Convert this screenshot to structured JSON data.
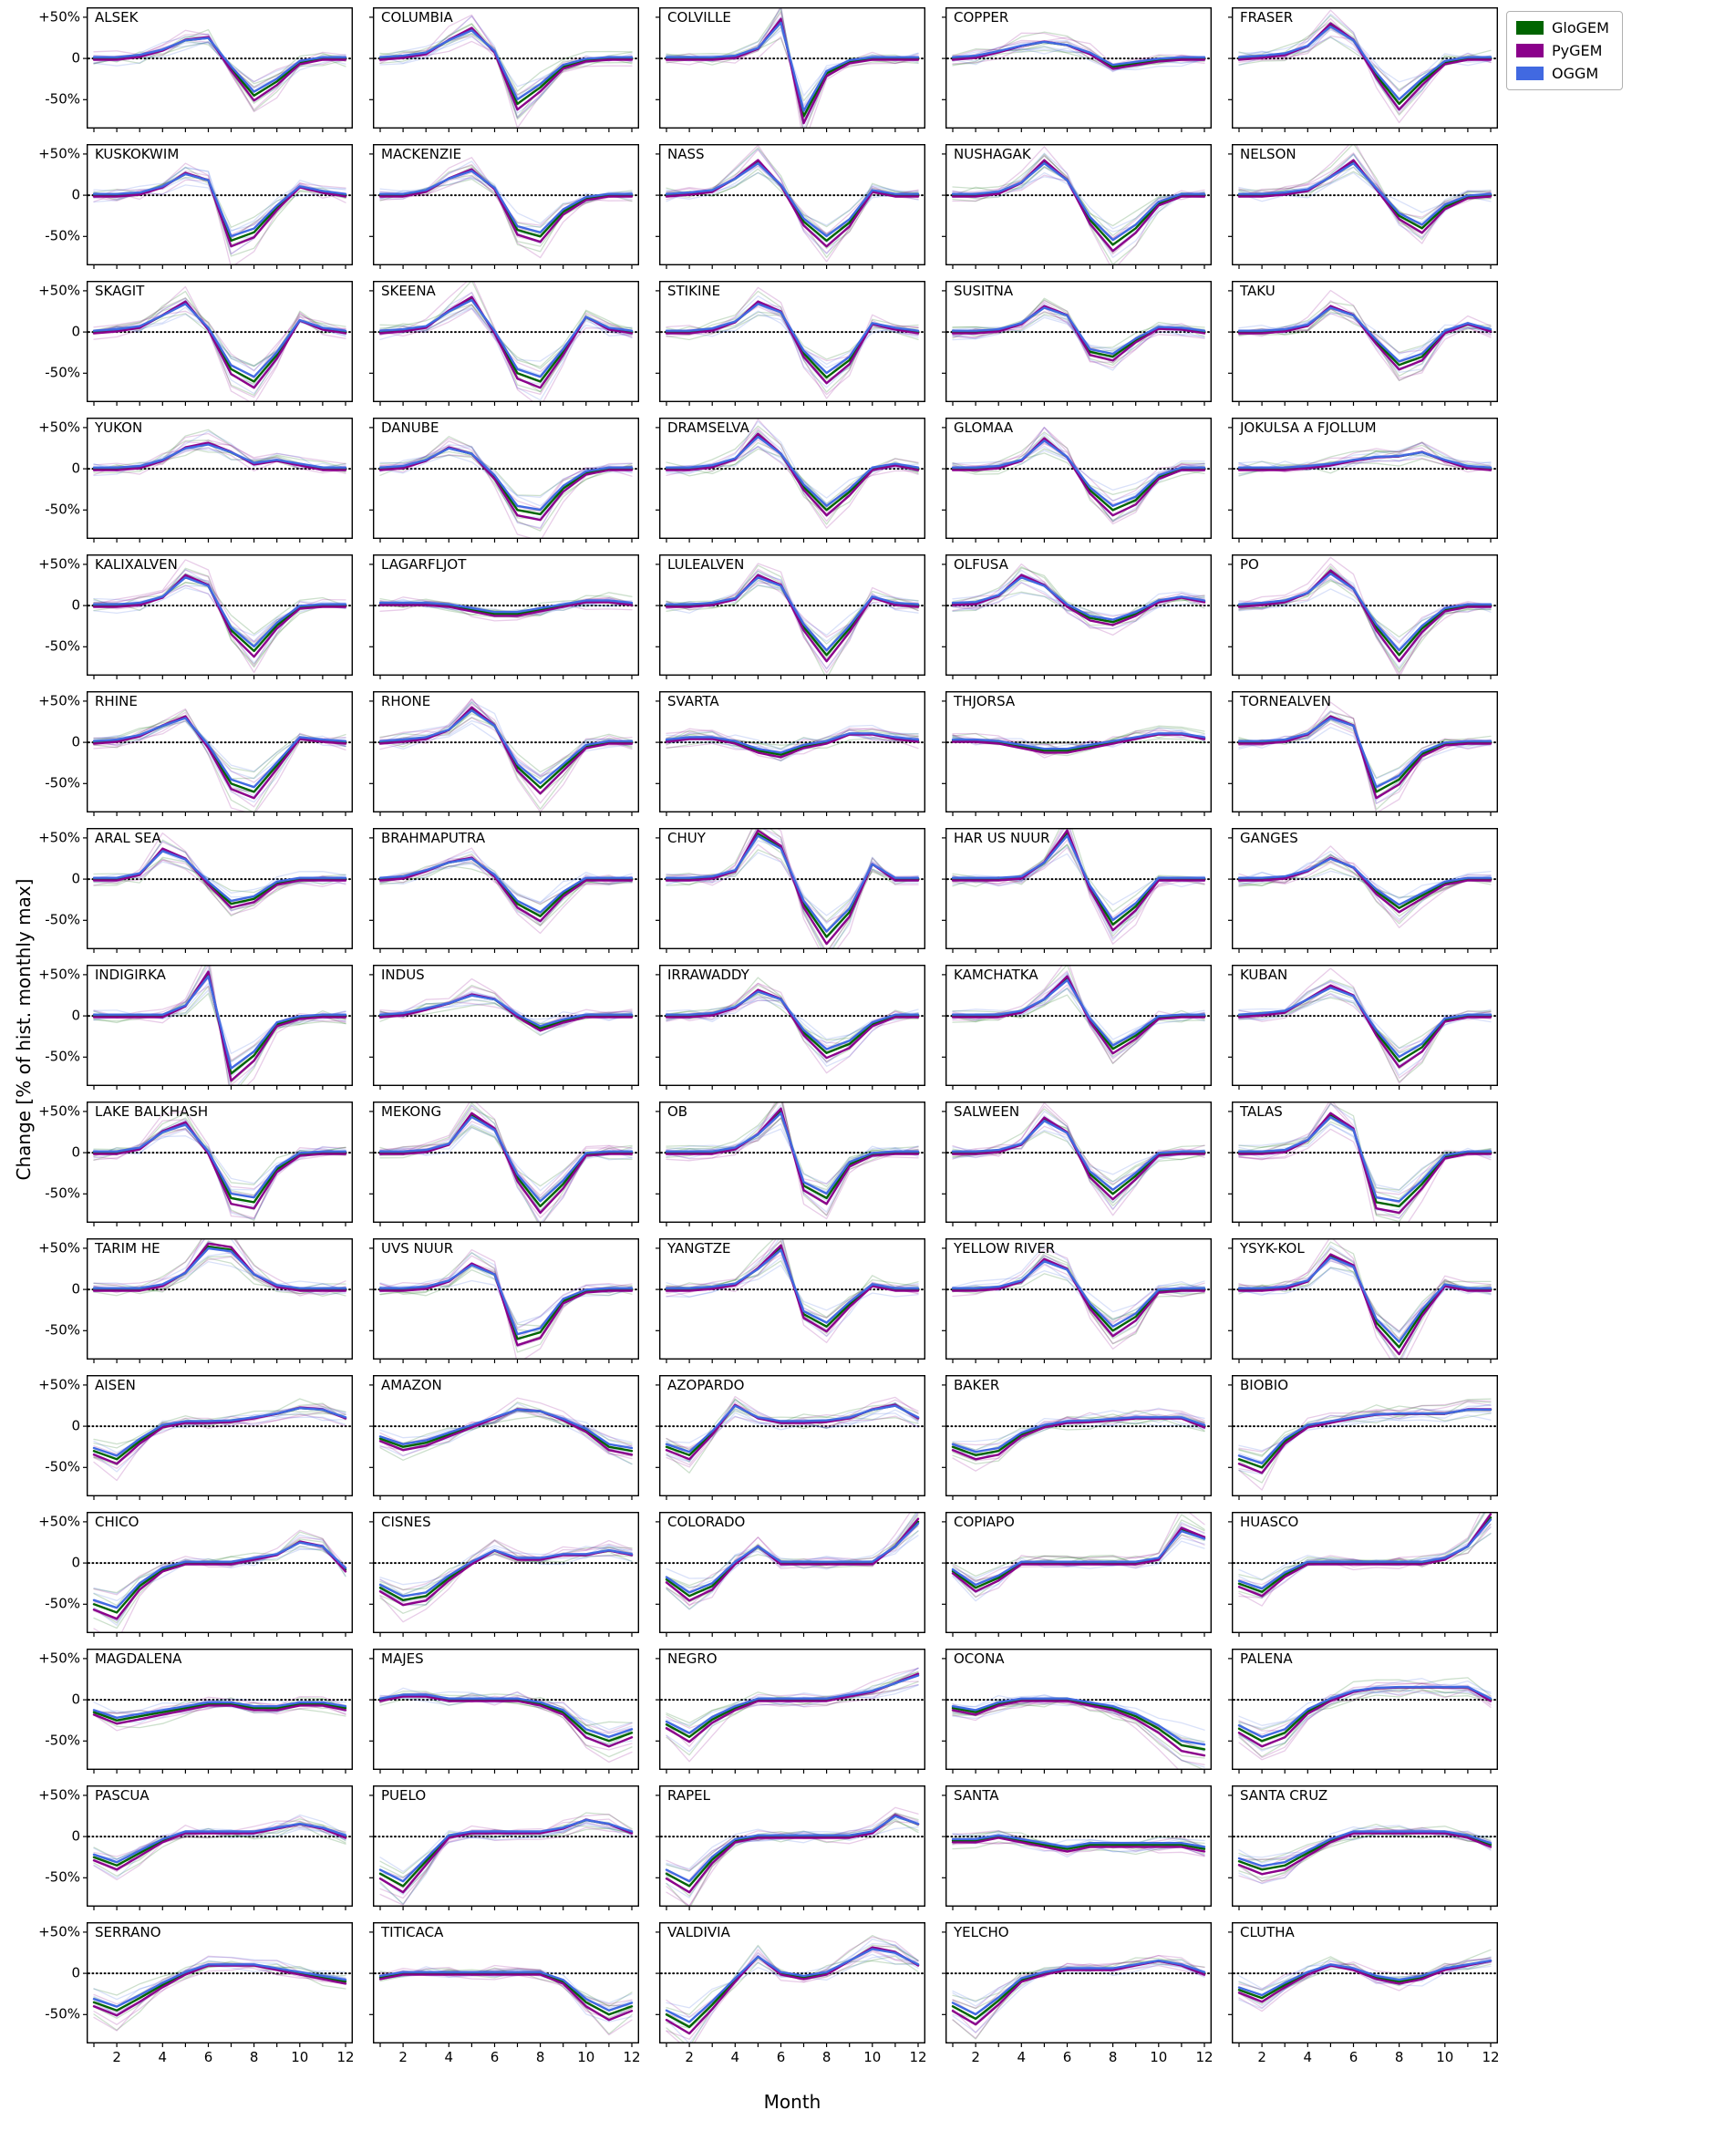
{
  "figure": {
    "ylabel": "Change [% of hist. monthly max]",
    "xlabel": "Month",
    "yticks": [
      50,
      0,
      -50
    ],
    "ytick_labels": [
      "+50%",
      "0",
      "-50%"
    ],
    "xticks": [
      2,
      4,
      6,
      8,
      10,
      12
    ]
  },
  "legend": {
    "entries": [
      {
        "label": "GloGEM",
        "color": "#006400"
      },
      {
        "label": "PyGEM",
        "color": "#8B008B"
      },
      {
        "label": "OGGM",
        "color": "#4169E1"
      }
    ]
  },
  "render": {
    "ylim": [
      -85,
      62
    ],
    "model_scales": [
      1.0,
      1.1,
      0.93
    ],
    "model_offsets": [
      0,
      -1.5,
      1.5
    ],
    "ensemble_scales": [
      1.35,
      0.7,
      1.15,
      0.85
    ],
    "ensemble_jitter": 6,
    "ensemble_alpha": 0.2,
    "mean_width": 2.4,
    "ensemble_width": 1.3
  },
  "chart_data": {
    "type": "line",
    "title": "Monthly runoff change per basin, three glacier models with ensemble spread",
    "x": [
      1,
      2,
      3,
      4,
      5,
      6,
      7,
      8,
      9,
      10,
      11,
      12
    ],
    "xlabel": "Month",
    "ylabel": "Change [% of hist. monthly max]",
    "ylim": [
      -85,
      62
    ],
    "grid": {
      "rows": 15,
      "cols": 5
    },
    "series_names": [
      "GloGEM",
      "PyGEM",
      "OGGM"
    ],
    "panels": [
      {
        "name": "ALSEK",
        "values": [
          0,
          0,
          3,
          10,
          22,
          25,
          -12,
          -45,
          -28,
          -5,
          0,
          0
        ]
      },
      {
        "name": "COLUMBIA",
        "values": [
          0,
          2,
          6,
          22,
          35,
          8,
          -55,
          -35,
          -10,
          -2,
          0,
          0
        ]
      },
      {
        "name": "COLVILLE",
        "values": [
          0,
          0,
          0,
          2,
          12,
          45,
          -70,
          -18,
          -4,
          0,
          0,
          0
        ]
      },
      {
        "name": "COPPER",
        "values": [
          0,
          2,
          8,
          15,
          20,
          16,
          6,
          -10,
          -6,
          -2,
          0,
          0
        ]
      },
      {
        "name": "FRASER",
        "values": [
          0,
          2,
          5,
          15,
          40,
          22,
          -20,
          -55,
          -28,
          -5,
          0,
          0
        ]
      },
      {
        "name": "KUSKOKWIM",
        "values": [
          0,
          0,
          2,
          10,
          26,
          18,
          -55,
          -45,
          -15,
          10,
          4,
          0
        ]
      },
      {
        "name": "MACKENZIE",
        "values": [
          0,
          0,
          5,
          20,
          30,
          8,
          -42,
          -50,
          -20,
          -4,
          0,
          0
        ]
      },
      {
        "name": "NASS",
        "values": [
          0,
          2,
          5,
          20,
          40,
          12,
          -32,
          -55,
          -33,
          5,
          0,
          0
        ]
      },
      {
        "name": "NUSHAGAK",
        "values": [
          0,
          0,
          3,
          15,
          40,
          18,
          -30,
          -60,
          -40,
          -10,
          0,
          0
        ]
      },
      {
        "name": "NELSON",
        "values": [
          0,
          0,
          2,
          6,
          22,
          40,
          8,
          -25,
          -40,
          -14,
          -2,
          0
        ]
      },
      {
        "name": "SKAGIT",
        "values": [
          0,
          2,
          6,
          20,
          35,
          4,
          -45,
          -60,
          -28,
          14,
          4,
          0
        ]
      },
      {
        "name": "SKEENA",
        "values": [
          0,
          2,
          6,
          25,
          40,
          0,
          -50,
          -60,
          -24,
          18,
          4,
          0
        ]
      },
      {
        "name": "STIKINE",
        "values": [
          0,
          0,
          3,
          12,
          35,
          24,
          -26,
          -55,
          -34,
          10,
          4,
          0
        ]
      },
      {
        "name": "SUSITNA",
        "values": [
          0,
          0,
          2,
          10,
          30,
          20,
          -24,
          -30,
          -10,
          5,
          4,
          0
        ]
      },
      {
        "name": "TAKU",
        "values": [
          0,
          0,
          2,
          8,
          30,
          20,
          -12,
          -40,
          -30,
          0,
          10,
          2
        ]
      },
      {
        "name": "YUKON",
        "values": [
          0,
          0,
          2,
          10,
          25,
          30,
          20,
          6,
          10,
          5,
          0,
          0
        ]
      },
      {
        "name": "DANUBE",
        "values": [
          0,
          2,
          10,
          25,
          18,
          -10,
          -50,
          -55,
          -24,
          -5,
          0,
          0
        ]
      },
      {
        "name": "DRAMSELVA",
        "values": [
          0,
          0,
          3,
          12,
          40,
          18,
          -22,
          -50,
          -28,
          0,
          5,
          0
        ]
      },
      {
        "name": "GLOMAA",
        "values": [
          0,
          0,
          2,
          10,
          35,
          14,
          -26,
          -50,
          -38,
          -10,
          0,
          0
        ]
      },
      {
        "name": "JOKULSA A FJOLLUM",
        "values": [
          0,
          0,
          0,
          2,
          5,
          10,
          14,
          15,
          20,
          10,
          2,
          0
        ]
      },
      {
        "name": "KALIXALVEN",
        "values": [
          0,
          0,
          2,
          10,
          35,
          24,
          -30,
          -55,
          -24,
          -2,
          0,
          0
        ]
      },
      {
        "name": "LAGARFLJOT",
        "values": [
          2,
          2,
          2,
          0,
          -5,
          -10,
          -10,
          -5,
          0,
          5,
          5,
          2
        ]
      },
      {
        "name": "LULEALVEN",
        "values": [
          0,
          0,
          2,
          8,
          35,
          24,
          -26,
          -60,
          -28,
          10,
          2,
          0
        ]
      },
      {
        "name": "OLFUSA",
        "values": [
          2,
          3,
          12,
          35,
          24,
          0,
          -15,
          -20,
          -10,
          5,
          10,
          5
        ]
      },
      {
        "name": "PO",
        "values": [
          0,
          2,
          5,
          15,
          40,
          20,
          -26,
          -60,
          -28,
          -5,
          0,
          0
        ]
      },
      {
        "name": "RHINE",
        "values": [
          0,
          2,
          8,
          20,
          30,
          -5,
          -50,
          -60,
          -28,
          5,
          2,
          0
        ]
      },
      {
        "name": "RHONE",
        "values": [
          0,
          2,
          5,
          15,
          40,
          20,
          -30,
          -55,
          -30,
          -5,
          0,
          0
        ]
      },
      {
        "name": "SVARTA",
        "values": [
          2,
          5,
          5,
          0,
          -10,
          -15,
          -5,
          0,
          10,
          10,
          5,
          2
        ]
      },
      {
        "name": "THJORSA",
        "values": [
          2,
          2,
          0,
          -5,
          -10,
          -10,
          -5,
          0,
          5,
          10,
          10,
          5
        ]
      },
      {
        "name": "TORNEALVEN",
        "values": [
          0,
          0,
          2,
          10,
          30,
          20,
          -60,
          -45,
          -14,
          -2,
          0,
          0
        ]
      },
      {
        "name": "ARAL SEA",
        "values": [
          0,
          0,
          6,
          35,
          24,
          -5,
          -30,
          -24,
          -5,
          0,
          0,
          0
        ]
      },
      {
        "name": "BRAHMAPUTRA",
        "values": [
          0,
          2,
          10,
          20,
          25,
          4,
          -30,
          -45,
          -18,
          0,
          0,
          0
        ]
      },
      {
        "name": "CHUY",
        "values": [
          0,
          0,
          2,
          10,
          55,
          38,
          -30,
          -70,
          -40,
          18,
          0,
          0
        ]
      },
      {
        "name": "HAR US NUUR",
        "values": [
          0,
          0,
          0,
          2,
          20,
          55,
          -10,
          -55,
          -33,
          0,
          0,
          0
        ]
      },
      {
        "name": "GANGES",
        "values": [
          0,
          0,
          2,
          10,
          25,
          14,
          -15,
          -35,
          -20,
          -5,
          0,
          0
        ]
      },
      {
        "name": "INDIGIRKA",
        "values": [
          0,
          0,
          0,
          0,
          12,
          50,
          -70,
          -48,
          -10,
          -2,
          0,
          0
        ]
      },
      {
        "name": "INDUS",
        "values": [
          0,
          2,
          8,
          15,
          25,
          20,
          0,
          -15,
          -6,
          0,
          0,
          0
        ]
      },
      {
        "name": "IRRAWADDY",
        "values": [
          0,
          0,
          2,
          10,
          30,
          20,
          -20,
          -45,
          -34,
          -10,
          0,
          0
        ]
      },
      {
        "name": "KAMCHATKA",
        "values": [
          0,
          0,
          0,
          5,
          20,
          45,
          -5,
          -40,
          -24,
          -2,
          0,
          0
        ]
      },
      {
        "name": "KUBAN",
        "values": [
          0,
          2,
          5,
          20,
          35,
          24,
          -20,
          -55,
          -38,
          -5,
          0,
          0
        ]
      },
      {
        "name": "LAKE BALKHASH",
        "values": [
          0,
          0,
          5,
          25,
          35,
          0,
          -55,
          -60,
          -20,
          -2,
          0,
          0
        ]
      },
      {
        "name": "MEKONG",
        "values": [
          0,
          0,
          2,
          10,
          45,
          28,
          -30,
          -65,
          -38,
          -2,
          0,
          0
        ]
      },
      {
        "name": "OB",
        "values": [
          0,
          0,
          0,
          5,
          22,
          50,
          -40,
          -55,
          -14,
          -2,
          0,
          0
        ]
      },
      {
        "name": "SALWEEN",
        "values": [
          0,
          0,
          2,
          10,
          40,
          24,
          -26,
          -50,
          -28,
          -2,
          0,
          0
        ]
      },
      {
        "name": "TALAS",
        "values": [
          0,
          0,
          2,
          15,
          45,
          28,
          -60,
          -65,
          -38,
          -5,
          0,
          0
        ]
      },
      {
        "name": "TARIM HE",
        "values": [
          0,
          0,
          0,
          5,
          20,
          52,
          48,
          18,
          4,
          0,
          0,
          0
        ]
      },
      {
        "name": "UVS NUUR",
        "values": [
          0,
          0,
          2,
          10,
          30,
          18,
          -60,
          -52,
          -14,
          -2,
          0,
          0
        ]
      },
      {
        "name": "YANGTZE",
        "values": [
          0,
          0,
          2,
          6,
          25,
          50,
          -30,
          -45,
          -18,
          5,
          0,
          0
        ]
      },
      {
        "name": "YELLOW RIVER",
        "values": [
          0,
          0,
          2,
          10,
          35,
          24,
          -20,
          -50,
          -33,
          -2,
          0,
          0
        ]
      },
      {
        "name": "YSYK-KOL",
        "values": [
          0,
          0,
          2,
          10,
          40,
          28,
          -40,
          -70,
          -28,
          5,
          0,
          0
        ]
      },
      {
        "name": "AISEN",
        "values": [
          -30,
          -40,
          -18,
          0,
          5,
          5,
          6,
          10,
          15,
          22,
          20,
          10
        ]
      },
      {
        "name": "AMAZON",
        "values": [
          -15,
          -25,
          -20,
          -10,
          0,
          10,
          20,
          18,
          8,
          -5,
          -25,
          -30
        ]
      },
      {
        "name": "AZOPARDO",
        "values": [
          -25,
          -35,
          -8,
          25,
          10,
          5,
          5,
          6,
          10,
          20,
          25,
          10
        ]
      },
      {
        "name": "BAKER",
        "values": [
          -25,
          -35,
          -30,
          -10,
          0,
          5,
          6,
          8,
          10,
          10,
          10,
          0
        ]
      },
      {
        "name": "BIOBIO",
        "values": [
          -40,
          -50,
          -18,
          0,
          5,
          10,
          14,
          15,
          15,
          15,
          20,
          20
        ]
      },
      {
        "name": "CHICO",
        "values": [
          -50,
          -60,
          -28,
          -8,
          0,
          0,
          0,
          5,
          10,
          25,
          20,
          -8
        ]
      },
      {
        "name": "CISNES",
        "values": [
          -30,
          -45,
          -40,
          -18,
          0,
          15,
          5,
          5,
          10,
          10,
          15,
          10
        ]
      },
      {
        "name": "COLORADO",
        "values": [
          -20,
          -40,
          -28,
          0,
          20,
          0,
          0,
          0,
          0,
          0,
          20,
          50
        ]
      },
      {
        "name": "COPIAPO",
        "values": [
          -10,
          -30,
          -18,
          0,
          0,
          0,
          0,
          0,
          0,
          5,
          40,
          30
        ]
      },
      {
        "name": "HUASCO",
        "values": [
          -25,
          -35,
          -14,
          0,
          0,
          0,
          0,
          0,
          0,
          5,
          20,
          55
        ]
      },
      {
        "name": "MAGDALENA",
        "values": [
          -15,
          -25,
          -20,
          -15,
          -10,
          -5,
          -5,
          -10,
          -10,
          -5,
          -5,
          -10
        ]
      },
      {
        "name": "MAJES",
        "values": [
          0,
          5,
          5,
          0,
          0,
          0,
          0,
          -5,
          -15,
          -40,
          -50,
          -40
        ]
      },
      {
        "name": "NEGRO",
        "values": [
          -30,
          -45,
          -24,
          -10,
          0,
          0,
          0,
          0,
          5,
          10,
          20,
          30
        ]
      },
      {
        "name": "OCONA",
        "values": [
          -10,
          -15,
          -5,
          0,
          0,
          0,
          -5,
          -10,
          -20,
          -35,
          -55,
          -60
        ]
      },
      {
        "name": "PALENA",
        "values": [
          -35,
          -50,
          -40,
          -14,
          0,
          10,
          14,
          15,
          15,
          15,
          15,
          0
        ]
      },
      {
        "name": "PASCUA",
        "values": [
          -25,
          -35,
          -20,
          -5,
          5,
          5,
          5,
          5,
          10,
          15,
          10,
          0
        ]
      },
      {
        "name": "PUELO",
        "values": [
          -45,
          -60,
          -30,
          0,
          5,
          5,
          5,
          5,
          10,
          20,
          15,
          5
        ]
      },
      {
        "name": "RAPEL",
        "values": [
          -45,
          -60,
          -28,
          -5,
          0,
          0,
          0,
          0,
          0,
          5,
          25,
          15
        ]
      },
      {
        "name": "SANTA",
        "values": [
          -5,
          -5,
          0,
          -5,
          -10,
          -15,
          -10,
          -10,
          -10,
          -10,
          -10,
          -15
        ]
      },
      {
        "name": "SANTA CRUZ",
        "values": [
          -30,
          -40,
          -35,
          -20,
          -5,
          5,
          5,
          5,
          5,
          5,
          0,
          -10
        ]
      },
      {
        "name": "SERRANO",
        "values": [
          -35,
          -45,
          -30,
          -14,
          0,
          10,
          10,
          10,
          5,
          0,
          -5,
          -10
        ]
      },
      {
        "name": "TITICACA",
        "values": [
          -5,
          0,
          0,
          0,
          0,
          0,
          0,
          0,
          -10,
          -35,
          -50,
          -40
        ]
      },
      {
        "name": "VALDIVIA",
        "values": [
          -50,
          -65,
          -38,
          -8,
          20,
          0,
          -5,
          0,
          15,
          30,
          25,
          10
        ]
      },
      {
        "name": "YELCHO",
        "values": [
          -40,
          -55,
          -33,
          -8,
          0,
          5,
          5,
          5,
          10,
          15,
          10,
          0
        ]
      },
      {
        "name": "CLUTHA",
        "values": [
          -20,
          -30,
          -14,
          0,
          10,
          5,
          -5,
          -10,
          -5,
          5,
          10,
          15
        ]
      }
    ]
  }
}
